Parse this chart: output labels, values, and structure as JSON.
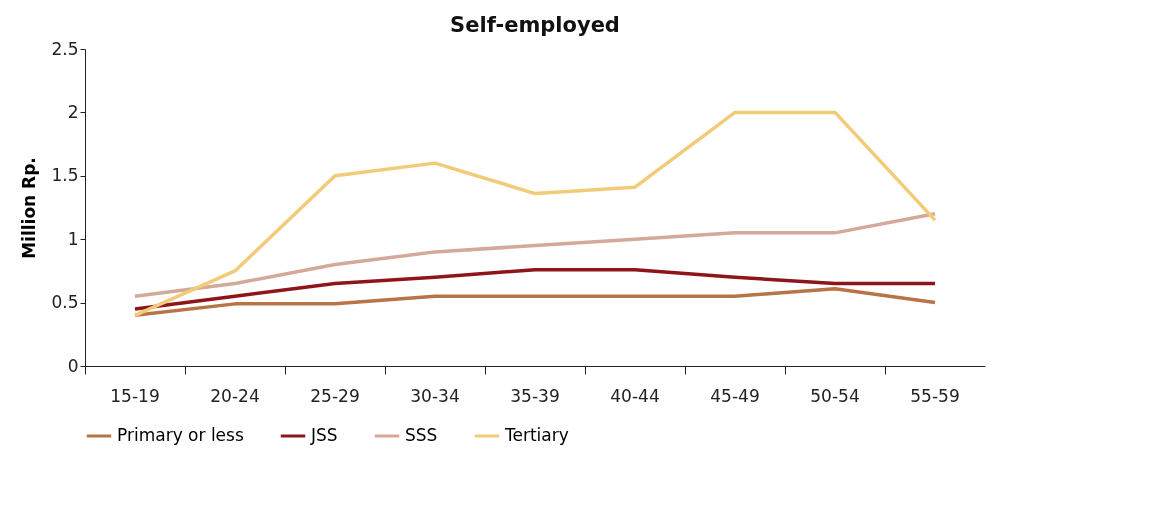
{
  "chart_data": {
    "type": "line",
    "title": "Self-employed",
    "ylabel": "Million Rp.",
    "categories": [
      "15-19",
      "20-24",
      "25-29",
      "30-34",
      "35-39",
      "40-44",
      "45-49",
      "50-54",
      "55-59"
    ],
    "series": [
      {
        "name": "Primary or less",
        "color": "#b87446",
        "values": [
          0.4,
          0.49,
          0.49,
          0.55,
          0.55,
          0.55,
          0.55,
          0.61,
          0.5
        ]
      },
      {
        "name": "JSS",
        "color": "#8e161b",
        "values": [
          0.45,
          0.55,
          0.65,
          0.7,
          0.76,
          0.76,
          0.7,
          0.65,
          0.65
        ]
      },
      {
        "name": "SSS",
        "color": "#d4a999",
        "values": [
          0.55,
          0.65,
          0.8,
          0.9,
          0.95,
          1.0,
          1.05,
          1.05,
          1.2
        ]
      },
      {
        "name": "Tertiary",
        "color": "#f2cb78",
        "values": [
          0.4,
          0.75,
          1.5,
          1.6,
          1.36,
          1.41,
          2.0,
          2.0,
          1.15
        ]
      }
    ],
    "ylim": [
      0,
      2.5
    ],
    "yticks": [
      0,
      0.5,
      1,
      1.5,
      2,
      2.5
    ],
    "grid": false,
    "legend": "bottom",
    "marker": "none",
    "line_style": "solid"
  }
}
